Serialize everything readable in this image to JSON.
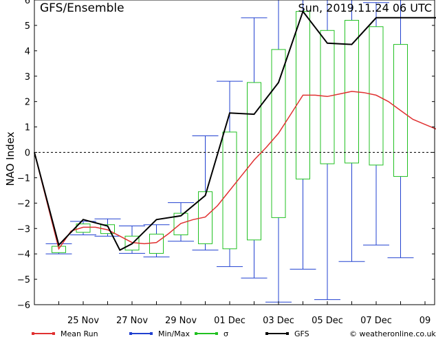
{
  "chart_data": {
    "type": "line",
    "title": "GFS/Ensemble",
    "run_label": "Sun, 2019.11.24   06 UTC",
    "ylabel": "NAO Index",
    "xlabel": "",
    "ylim": [
      -6,
      6
    ],
    "yticks": [
      -6,
      -5,
      -4,
      -3,
      -2,
      -1,
      0,
      1,
      2,
      3,
      4,
      5,
      6
    ],
    "xlim": [
      0,
      16.5
    ],
    "xticks": [
      {
        "pos": 2,
        "label": "25 Nov"
      },
      {
        "pos": 4,
        "label": "27 Nov"
      },
      {
        "pos": 6,
        "label": "29 Nov"
      },
      {
        "pos": 8,
        "label": "01 Dec"
      },
      {
        "pos": 10,
        "label": "03 Dec"
      },
      {
        "pos": 12,
        "label": "05 Dec"
      },
      {
        "pos": 14,
        "label": "07 Dec"
      },
      {
        "pos": 16,
        "label": "09"
      }
    ],
    "grid": false,
    "zero_line": true,
    "boxes": [
      {
        "x": 1,
        "min": -4.0,
        "max": -3.6,
        "sd_low": -3.95,
        "sd_high": -3.7
      },
      {
        "x": 2,
        "min": -3.25,
        "max": -2.72,
        "sd_low": -3.15,
        "sd_high": -2.82
      },
      {
        "x": 3,
        "min": -3.3,
        "max": -2.62,
        "sd_low": -3.2,
        "sd_high": -2.85
      },
      {
        "x": 4,
        "min": -3.98,
        "max": -2.9,
        "sd_low": -3.85,
        "sd_high": -3.3
      },
      {
        "x": 5,
        "min": -4.12,
        "max": -2.85,
        "sd_low": -3.98,
        "sd_high": -3.22
      },
      {
        "x": 6,
        "min": -3.5,
        "max": -1.98,
        "sd_low": -3.25,
        "sd_high": -2.4
      },
      {
        "x": 7,
        "min": -3.85,
        "max": 0.65,
        "sd_low": -3.6,
        "sd_high": -1.55
      },
      {
        "x": 8,
        "min": -4.5,
        "max": 2.8,
        "sd_low": -3.8,
        "sd_high": 0.8
      },
      {
        "x": 9,
        "min": -4.95,
        "max": 5.3,
        "sd_low": -3.45,
        "sd_high": 2.75
      },
      {
        "x": 10,
        "min": -5.9,
        "max": 6.0,
        "sd_low": -2.57,
        "sd_high": 4.05
      },
      {
        "x": 11,
        "min": -4.6,
        "max": 6.0,
        "sd_low": -1.05,
        "sd_high": 5.55
      },
      {
        "x": 12,
        "min": -5.8,
        "max": 6.0,
        "sd_low": -0.45,
        "sd_high": 4.8
      },
      {
        "x": 13,
        "min": -4.3,
        "max": 6.0,
        "sd_low": -0.42,
        "sd_high": 5.2
      },
      {
        "x": 14,
        "min": -3.65,
        "max": 5.9,
        "sd_low": -0.5,
        "sd_high": 4.95
      },
      {
        "x": 15,
        "min": -4.15,
        "max": 6.0,
        "sd_low": -0.95,
        "sd_high": 4.25
      }
    ],
    "series": [
      {
        "name": "Mean Run",
        "color": "#e03030",
        "x": [
          0,
          1,
          1.5,
          2,
          2.5,
          3,
          3.5,
          4,
          4.5,
          5,
          5.5,
          6,
          6.5,
          7,
          7.5,
          8,
          8.5,
          9,
          9.5,
          10,
          10.5,
          11,
          11.5,
          12,
          12.5,
          13,
          13.5,
          14,
          14.5,
          15,
          15.5,
          16,
          16.5
        ],
        "values": [
          0,
          -3.8,
          -3.1,
          -2.95,
          -2.95,
          -3.05,
          -3.3,
          -3.55,
          -3.6,
          -3.55,
          -3.2,
          -2.8,
          -2.65,
          -2.55,
          -2.1,
          -1.5,
          -0.9,
          -0.3,
          0.2,
          0.75,
          1.5,
          2.25,
          2.25,
          2.2,
          2.3,
          2.4,
          2.35,
          2.25,
          2.0,
          1.65,
          1.3,
          1.1,
          0.9
        ]
      },
      {
        "name": "GFS",
        "color": "#000000",
        "x": [
          0,
          1,
          2,
          3,
          3.5,
          4,
          5,
          6,
          7,
          8,
          9,
          10,
          11,
          12,
          13,
          14,
          15,
          16,
          16.5
        ],
        "values": [
          0,
          -3.65,
          -2.65,
          -2.9,
          -3.85,
          -3.6,
          -2.65,
          -2.5,
          -1.7,
          1.55,
          1.5,
          2.75,
          5.55,
          4.3,
          4.25,
          5.3,
          5.3,
          5.3,
          5.3
        ]
      }
    ],
    "legend": [
      {
        "label": "Mean Run",
        "color": "#e03030"
      },
      {
        "label": "Min/Max",
        "color": "#2040d0"
      },
      {
        "label": "σ",
        "color": "#20c020"
      },
      {
        "label": "GFS",
        "color": "#000000"
      },
      {
        "label": "© weatheronline.co.uk",
        "color": "#000000"
      }
    ]
  }
}
